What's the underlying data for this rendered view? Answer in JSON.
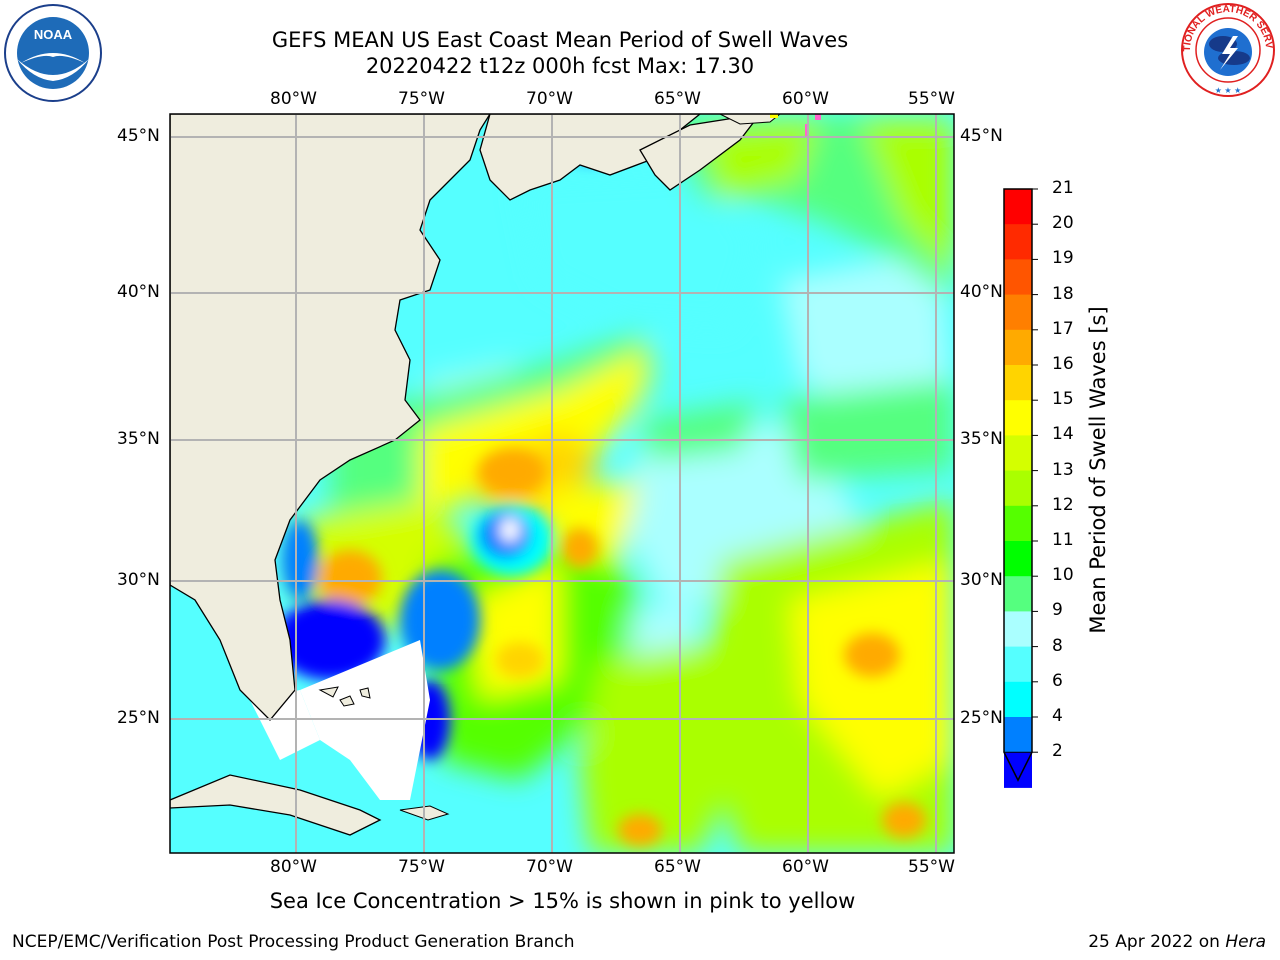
{
  "title": {
    "line1": "GEFS MEAN US East Coast Mean Period of Swell Waves",
    "line2": "20220422 t12z 000h fcst   Max: 17.30"
  },
  "map": {
    "lon_ticks": [
      "80°W",
      "75°W",
      "70°W",
      "65°W",
      "60°W",
      "55°W"
    ],
    "lat_ticks": [
      "45°N",
      "40°N",
      "35°N",
      "30°N",
      "25°N"
    ],
    "colors": {
      "land": "#efedde",
      "coast": "#000000",
      "grid": "#b3b3b3"
    }
  },
  "colorbar": {
    "title": "Mean Period of Swell Waves [s]",
    "labels": [
      "21",
      "20",
      "19",
      "18",
      "17",
      "16",
      "15",
      "14",
      "13",
      "12",
      "11",
      "10",
      "9",
      "8",
      "6",
      "4",
      "2"
    ],
    "colors": [
      "#ff0000",
      "#ff2a00",
      "#ff5500",
      "#ff7f00",
      "#ffaa00",
      "#ffd400",
      "#ffff00",
      "#d4ff00",
      "#aaff00",
      "#55ff00",
      "#00ff00",
      "#55ff7f",
      "#aaffff",
      "#55ffff",
      "#00ffff",
      "#0080ff",
      "#0000ff"
    ]
  },
  "footnote": "Sea Ice Concentration > 15% is shown in pink to yellow",
  "credit": "NCEP/EMC/Verification Post Processing Product Generation Branch",
  "date": {
    "text": "25 Apr 2022 on",
    "system": "Hera"
  },
  "logos": {
    "noaa": {
      "text": "NOAA",
      "icon": "noaa-logo"
    },
    "nws": {
      "text": "NATIONAL WEATHER SERVICE",
      "icon": "nws-logo"
    }
  }
}
